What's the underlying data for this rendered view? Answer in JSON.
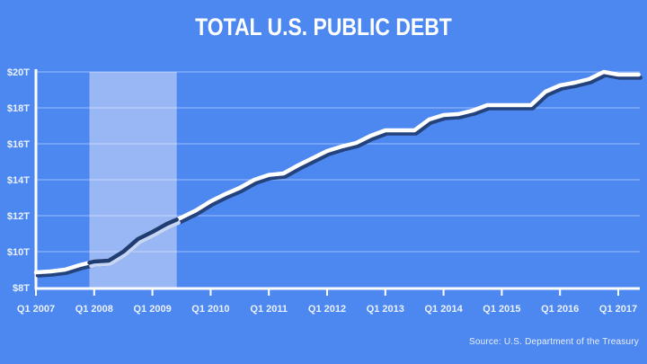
{
  "title": "TOTAL U.S. PUBLIC DEBT",
  "source_note": "Source: U.S. Department of the Treasury",
  "colors": {
    "background": "#4d87f0",
    "title_text": "#ffffff",
    "axis": "#ffffff",
    "grid": "rgba(255,255,255,0.45)",
    "tick_label": "#eaf1fe",
    "band": "#98b7f4",
    "line": "#ffffff",
    "line_shadow": "#24437c",
    "recession_line": "#1f3d72",
    "recession_line_shadow": "#c7d6f4",
    "source_text": "#e8effc"
  },
  "chart_data": {
    "type": "line",
    "title": "TOTAL U.S. PUBLIC DEBT",
    "xlabel": "",
    "ylabel": "",
    "unit": "trillion USD",
    "x_start": "Q1 2007",
    "x_interval": "quarterly",
    "x_tick_labels": [
      "Q1 2007",
      "Q1 2008",
      "Q1 2009",
      "Q1 2010",
      "Q1 2011",
      "Q1 2012",
      "Q1 2013",
      "Q1 2014",
      "Q1 2015",
      "Q1 2016",
      "Q1 2017"
    ],
    "x_tick_every_n_points": 4,
    "y_ticks": [
      {
        "label": "$8T",
        "value": 8
      },
      {
        "label": "$10T",
        "value": 10
      },
      {
        "label": "$12T",
        "value": 12
      },
      {
        "label": "$14T",
        "value": 14
      },
      {
        "label": "$16T",
        "value": 16
      },
      {
        "label": "$18T",
        "value": 18
      },
      {
        "label": "$20T",
        "value": 20
      }
    ],
    "ylim": [
      8,
      20
    ],
    "grid": "horizontal",
    "legend": "none",
    "series": [
      {
        "name": "Total U.S. public debt ($T)",
        "values": [
          8.85,
          8.9,
          9.0,
          9.25,
          9.45,
          9.5,
          10.0,
          10.7,
          11.1,
          11.55,
          11.9,
          12.3,
          12.8,
          13.2,
          13.55,
          14.0,
          14.27,
          14.35,
          14.8,
          15.2,
          15.6,
          15.85,
          16.05,
          16.45,
          16.75,
          16.75,
          16.75,
          17.35,
          17.6,
          17.65,
          17.85,
          18.15,
          18.15,
          18.15,
          18.15,
          18.9,
          19.25,
          19.4,
          19.6,
          20.0,
          19.85
        ]
      }
    ],
    "tail_extension_quarters": 1.4,
    "highlight_band": {
      "start_quarter_index": 3.67,
      "end_quarter_index": 9.67
    }
  }
}
